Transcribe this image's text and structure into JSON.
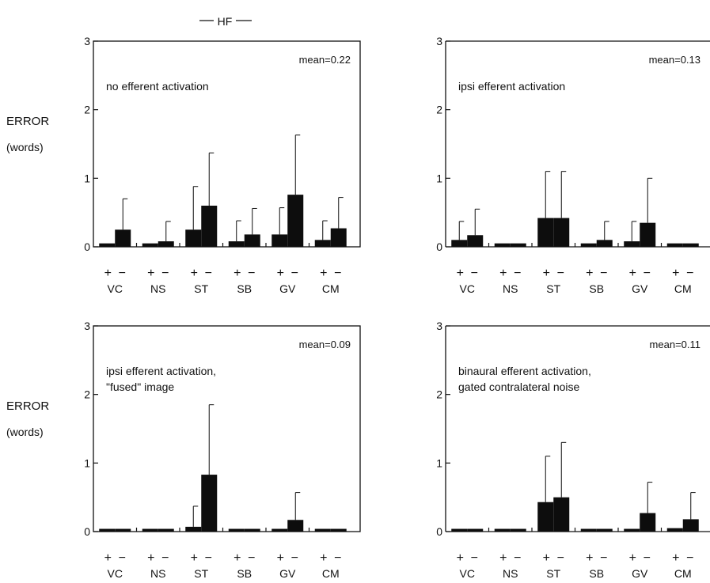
{
  "figure_title": "HF",
  "row_ylabel": "ERROR",
  "row_ylabel_units": "(words)",
  "colors": {
    "bar": "#0d0d0d",
    "axis": "#111111",
    "background": "#ffffff"
  },
  "chart_data": [
    {
      "type": "bar",
      "annotation": "no efferent activation",
      "mean_label": "mean=0.22",
      "ylim": [
        0,
        3
      ],
      "yticks": [
        "0",
        "1",
        "2",
        "3"
      ],
      "categories": [
        "VC",
        "NS",
        "ST",
        "SB",
        "GV",
        "CM"
      ],
      "condition_labels": [
        "+",
        "−"
      ],
      "series": [
        {
          "values": [
            0.05,
            0.05,
            0.25,
            0.08,
            0.18,
            0.1
          ],
          "error": [
            0.05,
            0.05,
            0.88,
            0.38,
            0.57,
            0.38
          ]
        },
        {
          "values": [
            0.25,
            0.08,
            0.6,
            0.18,
            0.76,
            0.27
          ],
          "error": [
            0.7,
            0.37,
            1.37,
            0.56,
            1.63,
            0.72
          ]
        }
      ]
    },
    {
      "type": "bar",
      "annotation": "ipsi efferent activation",
      "mean_label": "mean=0.13",
      "ylim": [
        0,
        3
      ],
      "yticks": [
        "0",
        "1",
        "2",
        "3"
      ],
      "categories": [
        "VC",
        "NS",
        "ST",
        "SB",
        "GV",
        "CM"
      ],
      "condition_labels": [
        "+",
        "−"
      ],
      "series": [
        {
          "values": [
            0.1,
            0.05,
            0.42,
            0.05,
            0.08,
            0.05
          ],
          "error": [
            0.37,
            0.05,
            1.1,
            0.05,
            0.37,
            0.05
          ]
        },
        {
          "values": [
            0.17,
            0.05,
            0.42,
            0.1,
            0.35,
            0.05
          ],
          "error": [
            0.55,
            0.05,
            1.1,
            0.37,
            1.0,
            0.05
          ]
        }
      ]
    },
    {
      "type": "bar",
      "annotation": "ipsi efferent activation,",
      "annotation2": "\"fused\" image",
      "mean_label": "mean=0.09",
      "ylim": [
        0,
        3
      ],
      "yticks": [
        "0",
        "1",
        "2",
        "3"
      ],
      "categories": [
        "VC",
        "NS",
        "ST",
        "SB",
        "GV",
        "CM"
      ],
      "condition_labels": [
        "+",
        "−"
      ],
      "series": [
        {
          "values": [
            0.04,
            0.04,
            0.07,
            0.04,
            0.04,
            0.04
          ],
          "error": [
            0.04,
            0.04,
            0.37,
            0.04,
            0.04,
            0.04
          ]
        },
        {
          "values": [
            0.04,
            0.04,
            0.83,
            0.04,
            0.17,
            0.04
          ],
          "error": [
            0.04,
            0.04,
            1.85,
            0.04,
            0.57,
            0.04
          ]
        }
      ]
    },
    {
      "type": "bar",
      "annotation": "binaural efferent activation,",
      "annotation2": "gated contralateral noise",
      "mean_label": "mean=0.11",
      "ylim": [
        0,
        3
      ],
      "yticks": [
        "0",
        "1",
        "2",
        "3"
      ],
      "categories": [
        "VC",
        "NS",
        "ST",
        "SB",
        "GV",
        "CM"
      ],
      "condition_labels": [
        "+",
        "−"
      ],
      "series": [
        {
          "values": [
            0.04,
            0.04,
            0.43,
            0.04,
            0.04,
            0.05
          ],
          "error": [
            0.04,
            0.04,
            1.1,
            0.04,
            0.04,
            0.05
          ]
        },
        {
          "values": [
            0.04,
            0.04,
            0.5,
            0.04,
            0.27,
            0.18
          ],
          "error": [
            0.04,
            0.04,
            1.3,
            0.04,
            0.72,
            0.57
          ]
        }
      ]
    }
  ]
}
